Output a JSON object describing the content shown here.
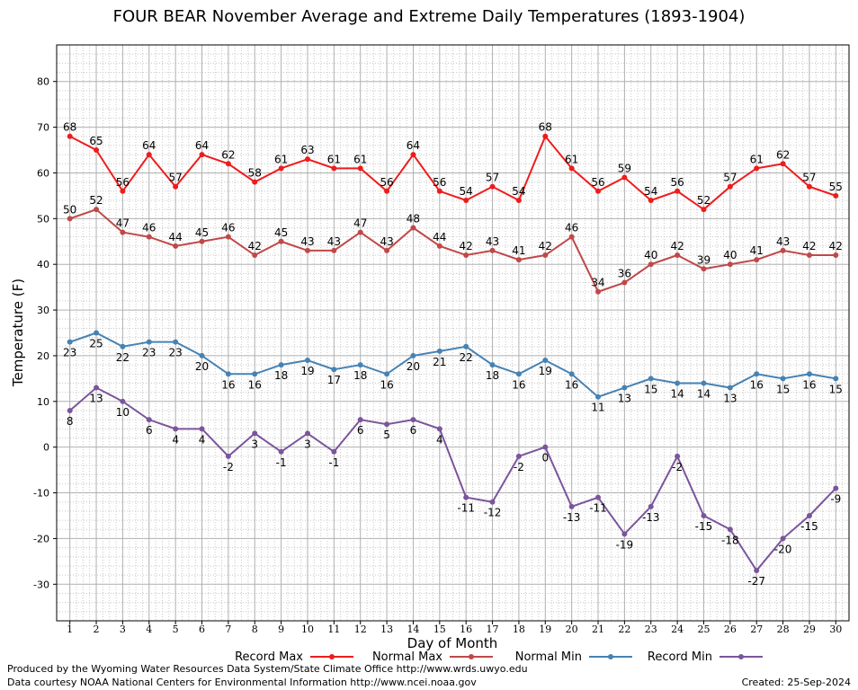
{
  "chart_data": {
    "type": "line",
    "title": "FOUR BEAR November Average and Extreme Daily Temperatures (1893-1904)",
    "xlabel": "Day of Month",
    "ylabel": "Temperature (F)",
    "x": [
      1,
      2,
      3,
      4,
      5,
      6,
      7,
      8,
      9,
      10,
      11,
      12,
      13,
      14,
      15,
      16,
      17,
      18,
      19,
      20,
      21,
      22,
      23,
      24,
      25,
      26,
      27,
      28,
      29,
      30
    ],
    "xlim": [
      0.5,
      30.5
    ],
    "ylim": [
      -38,
      88
    ],
    "yticks": [
      -30,
      -20,
      -10,
      0,
      10,
      20,
      30,
      40,
      50,
      60,
      70,
      80
    ],
    "grid": true,
    "legend_position": "bottom",
    "series": [
      {
        "name": "Record Max",
        "color": "#ee1c1c",
        "label_pos": "above",
        "values": [
          68,
          65,
          56,
          64,
          57,
          64,
          62,
          58,
          61,
          63,
          61,
          61,
          56,
          64,
          56,
          54,
          57,
          54,
          68,
          61,
          56,
          59,
          54,
          56,
          52,
          57,
          61,
          62,
          57,
          55
        ]
      },
      {
        "name": "Normal Max",
        "color": "#c04848",
        "label_pos": "above",
        "values": [
          50,
          52,
          47,
          46,
          44,
          45,
          46,
          42,
          45,
          43,
          43,
          47,
          43,
          48,
          44,
          42,
          43,
          41,
          42,
          46,
          34,
          36,
          40,
          42,
          39,
          40,
          41,
          43,
          42,
          42
        ]
      },
      {
        "name": "Normal Min",
        "color": "#4682b4",
        "label_pos": "below",
        "values": [
          23,
          25,
          22,
          23,
          23,
          20,
          16,
          16,
          18,
          19,
          17,
          18,
          16,
          20,
          21,
          22,
          18,
          16,
          19,
          16,
          11,
          13,
          15,
          14,
          14,
          13,
          16,
          15,
          16,
          15
        ]
      },
      {
        "name": "Record Min",
        "color": "#7b559b",
        "label_pos": "below",
        "values": [
          8,
          13,
          10,
          6,
          4,
          4,
          -2,
          3,
          -1,
          3,
          -1,
          6,
          5,
          6,
          4,
          -11,
          -12,
          -2,
          0,
          -13,
          -11,
          -19,
          -13,
          -2,
          -15,
          -18,
          -27,
          -20,
          -15,
          -9
        ]
      }
    ]
  },
  "footer": {
    "produced_by": "Produced by the Wyoming Water Resources Data System/State Climate Office http://www.wrds.uwyo.edu",
    "data_courtesy": "Data courtesy NOAA National Centers for Environmental Information http://www.ncei.noaa.gov",
    "created": "Created:  25-Sep-2024"
  }
}
